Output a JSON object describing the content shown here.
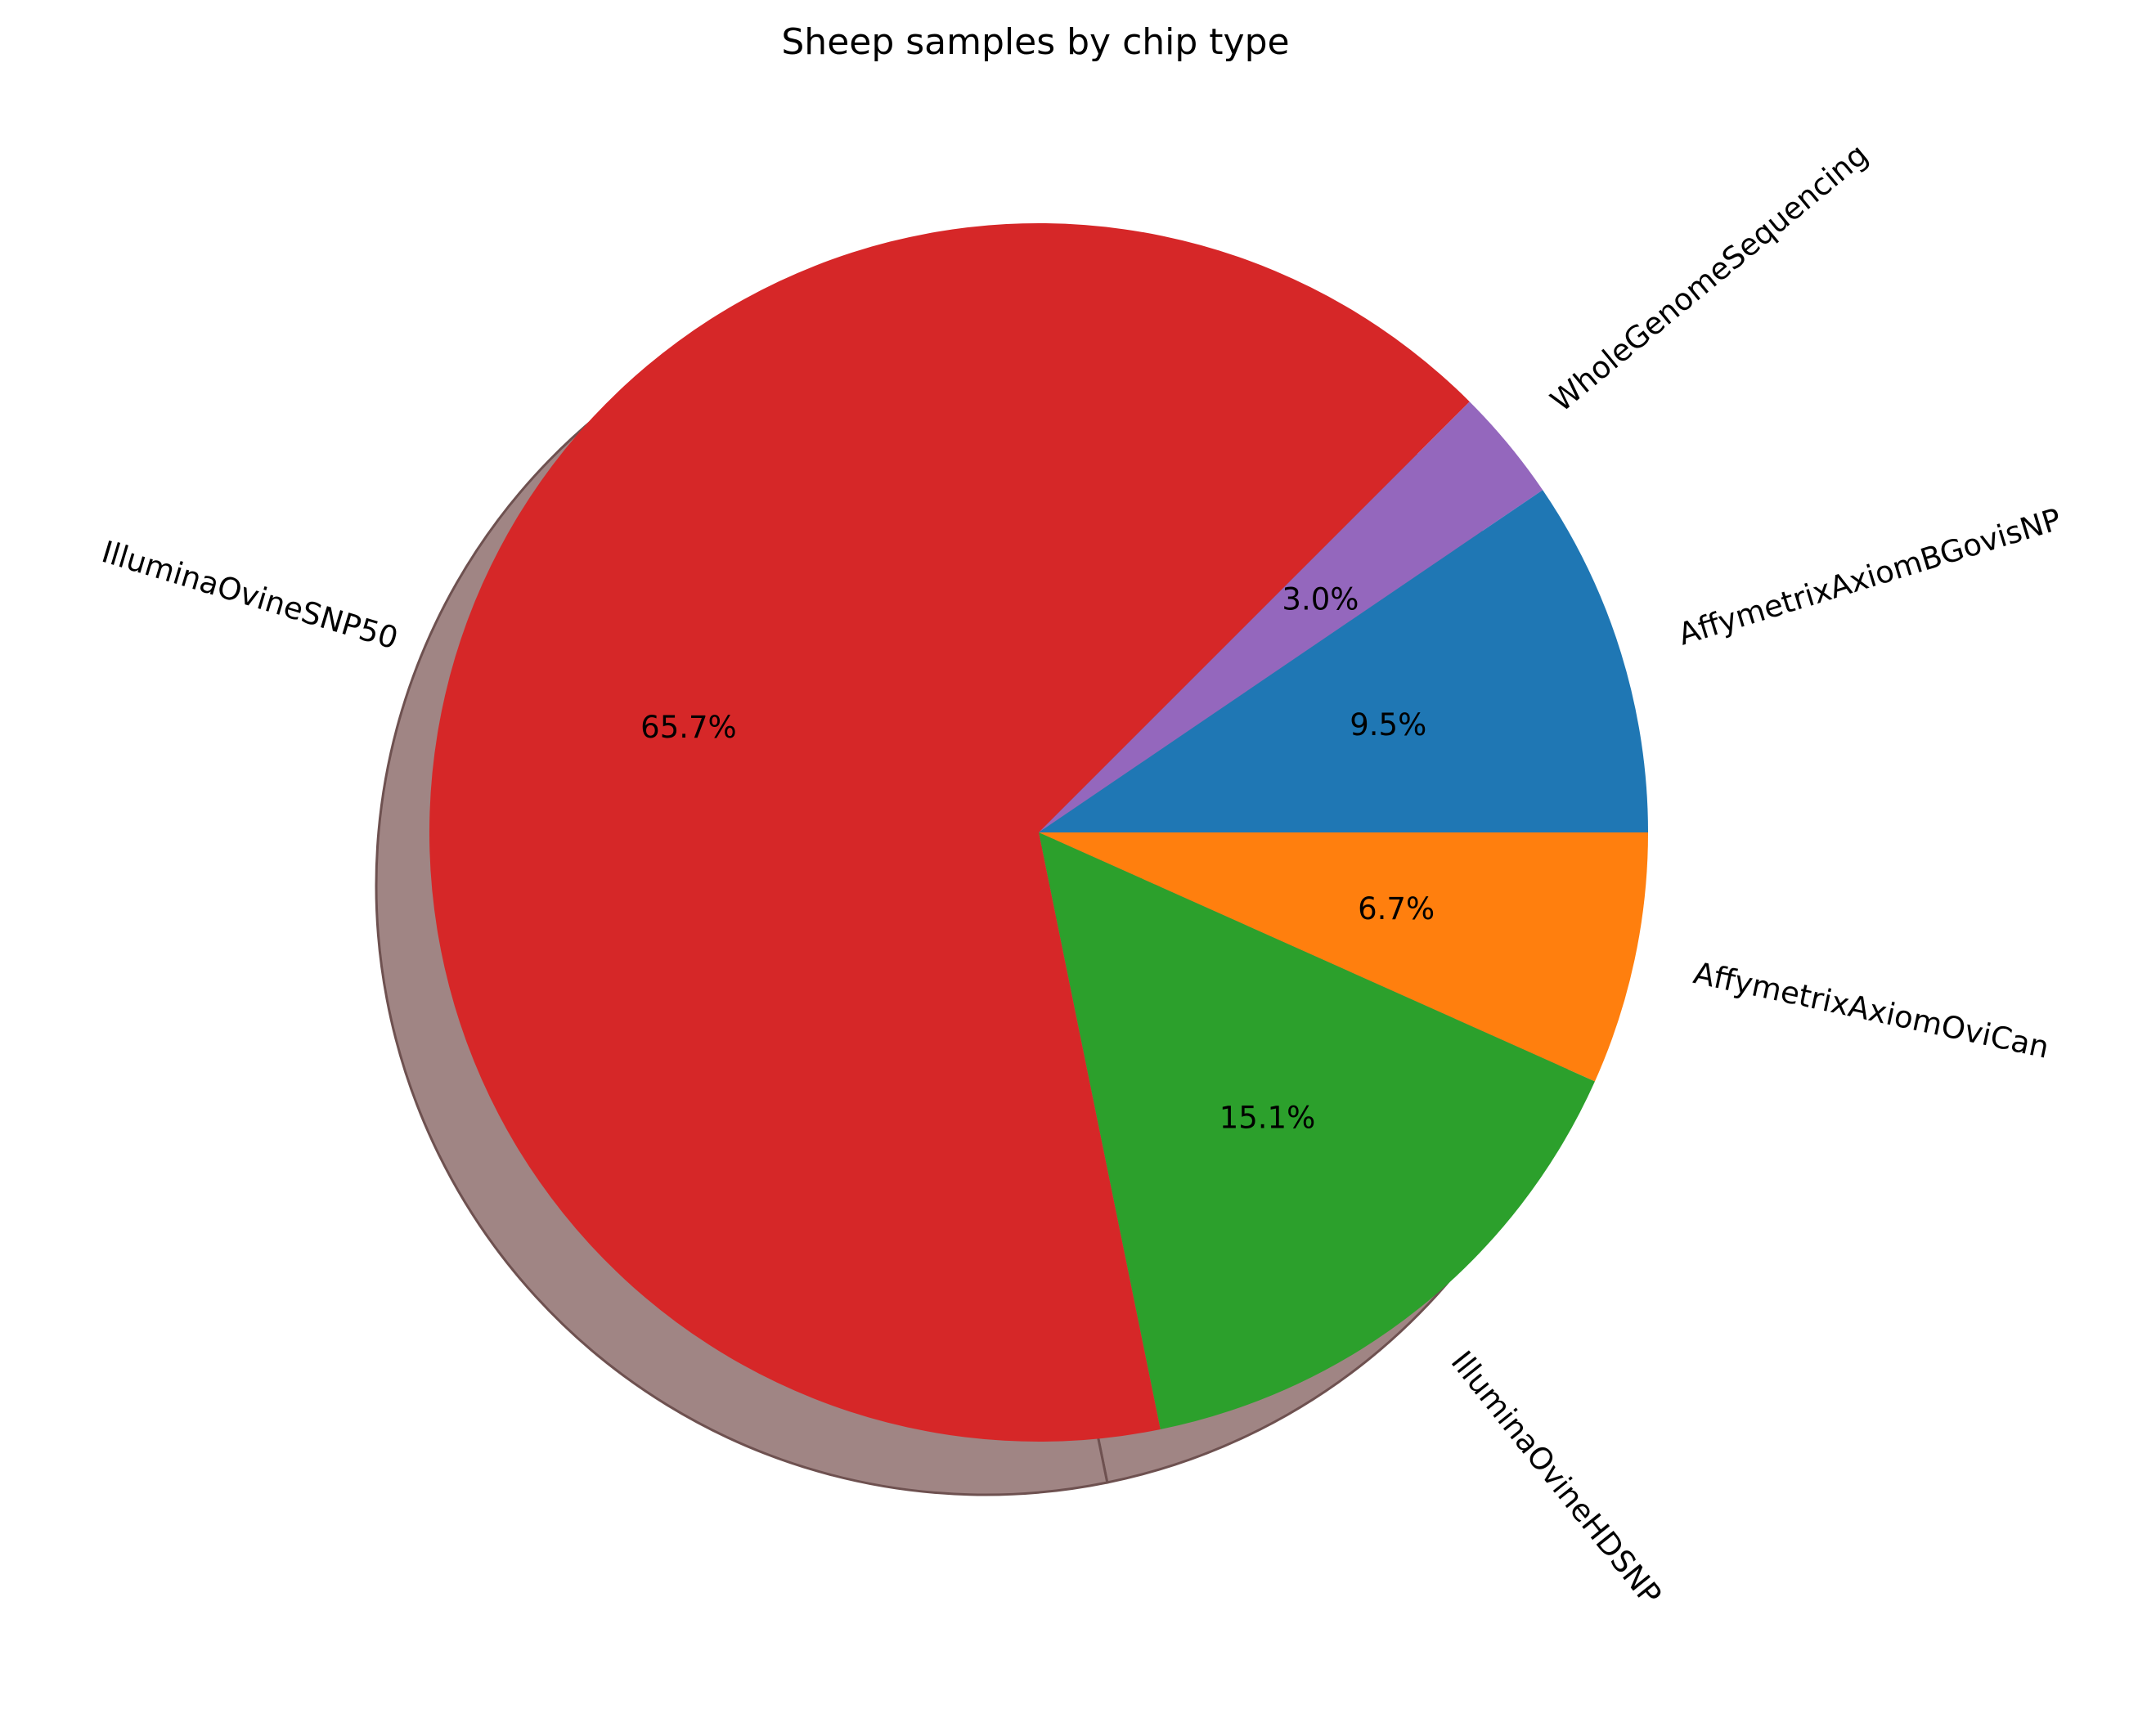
{
  "chart_data": {
    "type": "pie",
    "title": "Sheep samples by chip type",
    "start_angle_deg": 0,
    "direction": "clockwise",
    "shadow": true,
    "slices": [
      {
        "label": "AffymetrixAxiomOviCan",
        "value": 6.7,
        "pct_text": "6.7%",
        "color": "#ff7f0e"
      },
      {
        "label": "IlluminaOvineHDSNP",
        "value": 15.1,
        "pct_text": "15.1%",
        "color": "#2ca02c"
      },
      {
        "label": "IlluminaOvineSNP50",
        "value": 65.7,
        "pct_text": "65.7%",
        "color": "#d62728"
      },
      {
        "label": "WholeGenomeSequencing",
        "value": 3.0,
        "pct_text": "3.0%",
        "color": "#9467bd"
      },
      {
        "label": "AffymetrixAxiomBGovisNP",
        "value": 9.5,
        "pct_text": "9.5%",
        "color": "#1f77b4"
      }
    ]
  }
}
